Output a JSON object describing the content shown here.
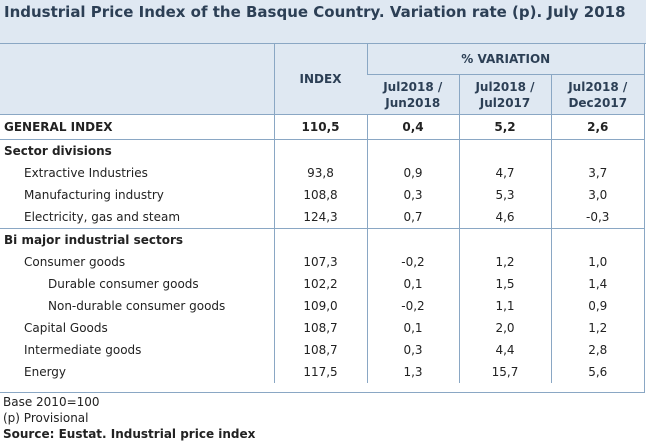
{
  "title": "Industrial Price Index of the Basque Country. Variation rate (p). July 2018",
  "header": {
    "index_label": "INDEX",
    "variation_label": "% VARIATION",
    "col1_line1": "Jul2018 /",
    "col1_line2": "Jun2018",
    "col2_line1": "Jul2018 /",
    "col2_line2": "Jul2017",
    "col3_line1": "Jul2018 /",
    "col3_line2": "Dec2017"
  },
  "general": {
    "label": "GENERAL INDEX",
    "index": "110,5",
    "v1": "0,4",
    "v2": "5,2",
    "v3": "2,6"
  },
  "sector_divisions": {
    "label": "Sector divisions",
    "rows": [
      {
        "label": "Extractive Industries",
        "index": "93,8",
        "v1": "0,9",
        "v2": "4,7",
        "v3": "3,7"
      },
      {
        "label": "Manufacturing industry",
        "index": "108,8",
        "v1": "0,3",
        "v2": "5,3",
        "v3": "3,0"
      },
      {
        "label": "Electricity, gas and steam",
        "index": "124,3",
        "v1": "0,7",
        "v2": "4,6",
        "v3": "-0,3"
      }
    ]
  },
  "major_sectors": {
    "label": "Bi major industrial sectors",
    "rows": [
      {
        "label": "Consumer goods",
        "index": "107,3",
        "v1": "-0,2",
        "v2": "1,2",
        "v3": "1,0"
      },
      {
        "label": "Durable consumer goods",
        "index": "102,2",
        "v1": "0,1",
        "v2": "1,5",
        "v3": "1,4"
      },
      {
        "label": "Non-durable consumer goods",
        "index": "109,0",
        "v1": "-0,2",
        "v2": "1,1",
        "v3": "0,9"
      },
      {
        "label": "Capital Goods",
        "index": "108,7",
        "v1": "0,1",
        "v2": "2,0",
        "v3": "1,2"
      },
      {
        "label": "Intermediate goods",
        "index": "108,7",
        "v1": "0,3",
        "v2": "4,4",
        "v3": "2,8"
      },
      {
        "label": "Energy",
        "index": "117,5",
        "v1": "1,3",
        "v2": "15,7",
        "v3": "5,6"
      }
    ]
  },
  "footer": {
    "base": "Base 2010=100",
    "provisional": "(p) Provisional",
    "source": "Source: Eustat. Industrial price index"
  }
}
